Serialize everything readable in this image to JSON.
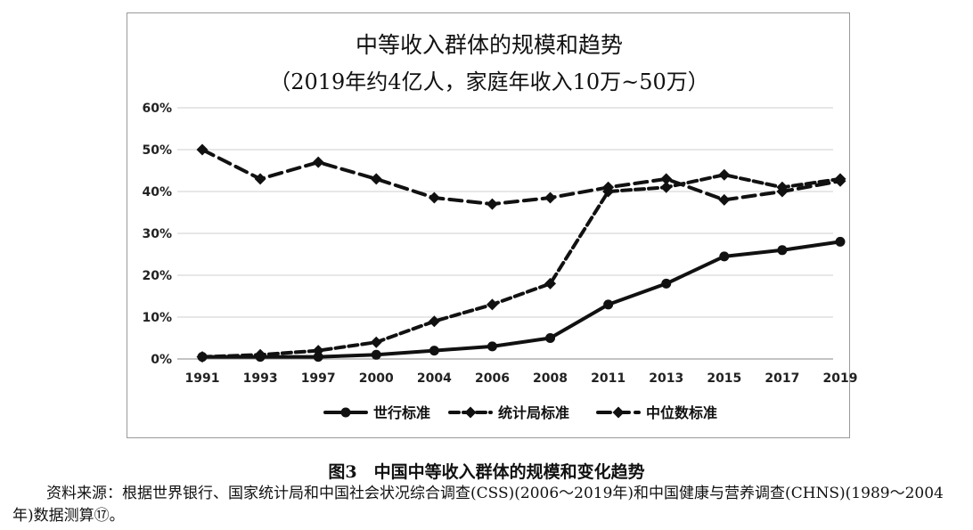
{
  "chart_data": {
    "type": "line",
    "title": "中等收入群体的规模和趋势",
    "subtitle": "（2019年约4亿人，家庭年收入10万~50万）",
    "categories": [
      "1991",
      "1993",
      "1997",
      "2000",
      "2004",
      "2006",
      "2008",
      "2011",
      "2013",
      "2015",
      "2017",
      "2019"
    ],
    "y_ticks": [
      "0%",
      "10%",
      "20%",
      "30%",
      "40%",
      "50%",
      "60%"
    ],
    "ylim": [
      0,
      60
    ],
    "grid": true,
    "legend_position": "bottom",
    "series": [
      {
        "name": "世行标准",
        "style": "solid",
        "marker": "circle",
        "values": [
          0.5,
          0.5,
          0.5,
          1.0,
          2.0,
          3.0,
          5.0,
          13.0,
          18.0,
          24.5,
          26.0,
          28.0
        ]
      },
      {
        "name": "统计局标准",
        "style": "dashed",
        "marker": "diamond",
        "values": [
          0.5,
          1.0,
          2.0,
          4.0,
          9.0,
          13.0,
          18.0,
          40.0,
          41.0,
          44.0,
          41.0,
          43.0
        ]
      },
      {
        "name": "中位数标准",
        "style": "long-dash",
        "marker": "diamond",
        "values": [
          50.0,
          43.0,
          47.0,
          43.0,
          38.5,
          37.0,
          38.5,
          41.0,
          43.0,
          38.0,
          40.0,
          42.5
        ]
      }
    ]
  },
  "figure_caption": "图3　中国中等收入群体的规模和变化趋势",
  "source_note": "资料来源：根据世界银行、国家统计局和中国社会状况综合调查(CSS)(2006～2019年)和中国健康与营养调查(CHNS)(1989～2004年)数据测算⑰。",
  "colors": {
    "line": "#111111",
    "grid": "#cfcfcf",
    "frame": "#9a9a9a"
  }
}
